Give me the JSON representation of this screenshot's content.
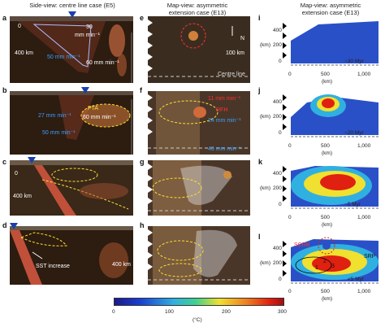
{
  "headers": {
    "side": "Side-view: centre line case (E5)",
    "map_line1": "Map-view: asymmetric",
    "map_line2": "extension case (E13)",
    "right_line1": "Map-view: asymmetric",
    "right_line2": "extension case (E13)"
  },
  "panel_letters": {
    "a": "a",
    "b": "b",
    "c": "c",
    "d": "d",
    "e": "e",
    "f": "f",
    "g": "g",
    "h": "h",
    "i": "i",
    "j": "j",
    "k": "k",
    "l": "l"
  },
  "panel_a": {
    "zero": "0",
    "depth": "400 km",
    "rate1": "30",
    "rate1_unit": "mm min⁻¹",
    "rate2": "50 mm min⁻¹",
    "rate3": "60 mm min⁻¹"
  },
  "panel_b": {
    "rate_a": "27 mm min⁻¹",
    "rate_b": "50 mm min⁻¹",
    "pta": "PTA",
    "rate_c": "60 mm min⁻¹"
  },
  "panel_c": {
    "zero": "0",
    "depth": "400 km"
  },
  "panel_d": {
    "sst": "SST increase",
    "depth": "400 km"
  },
  "panel_e": {
    "north": "N",
    "scale": "100 km",
    "centre": "Centre line"
  },
  "panel_f": {
    "r1": "11 mm min⁻¹",
    "rfh": "RFH",
    "r2": "24 mm min⁻¹",
    "r3": "43 mm min⁻¹"
  },
  "right_axes": {
    "y_ticks": [
      "400",
      "200",
      "0"
    ],
    "x_ticks": [
      "0",
      "500",
      "1,000"
    ],
    "ylabel": "(km)",
    "xlabel": "(km)"
  },
  "right_times": {
    "i": "~30 Myr",
    "j": "~20 Myr",
    "k": "~5 Myr",
    "l": "<5 Myr"
  },
  "panel_l_labels": {
    "scrb": "SCRB",
    "srp": "SRP",
    "n1": "1",
    "n2": "2",
    "n3": "3"
  },
  "colorbar": {
    "ticks": [
      "0",
      "100",
      "200",
      "300"
    ],
    "unit": "(°C)"
  },
  "colors": {
    "dark_bg": "#2a1a10",
    "slab": "#c0503a",
    "heat_hot": "#e02010",
    "heat_cool": "#1a3fb0"
  }
}
